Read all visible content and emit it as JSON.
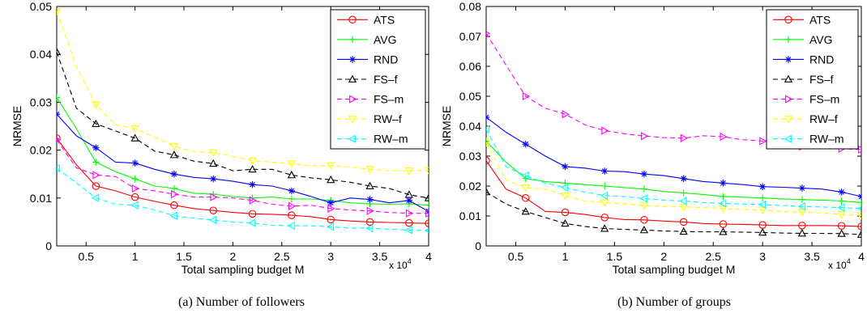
{
  "chart_data": [
    {
      "type": "line",
      "caption": "(a) Number of followers",
      "xlabel": "Total sampling budget M",
      "ylabel": "NRMSE",
      "x_multiplier": "x 10",
      "x_multiplier_exp": "4",
      "xlim": [
        2000,
        40000
      ],
      "ylim": [
        0,
        0.05
      ],
      "xticks": [
        5000,
        10000,
        15000,
        20000,
        25000,
        30000,
        35000,
        40000
      ],
      "xtick_labels": [
        "0.5",
        "1",
        "1.5",
        "2",
        "2.5",
        "3",
        "3.5",
        "4"
      ],
      "yticks": [
        0,
        0.01,
        0.02,
        0.03,
        0.04,
        0.05
      ],
      "ytick_labels": [
        "0",
        "0.01",
        "0.02",
        "0.03",
        "0.04",
        "0.05"
      ],
      "legend_position": "top-right",
      "x": [
        2000,
        4000,
        6000,
        8000,
        10000,
        12000,
        14000,
        16000,
        18000,
        20000,
        22000,
        24000,
        26000,
        28000,
        30000,
        32000,
        34000,
        36000,
        38000,
        40000
      ],
      "series": [
        {
          "name": "ATS",
          "color": "#ff0000",
          "dash": "solid",
          "marker": "circle",
          "values": [
            0.0225,
            0.017,
            0.0125,
            0.0115,
            0.0102,
            0.0093,
            0.0085,
            0.0078,
            0.0074,
            0.007,
            0.0067,
            0.0066,
            0.0064,
            0.0061,
            0.0055,
            0.0052,
            0.005,
            0.0049,
            0.0048,
            0.0047
          ]
        },
        {
          "name": "AVG",
          "color": "#00ff00",
          "dash": "solid",
          "marker": "plus",
          "values": [
            0.031,
            0.0245,
            0.0175,
            0.0155,
            0.014,
            0.0125,
            0.012,
            0.011,
            0.0108,
            0.0103,
            0.01,
            0.0102,
            0.0098,
            0.0098,
            0.0095,
            0.009,
            0.0088,
            0.0087,
            0.0088,
            0.0085
          ]
        },
        {
          "name": "RND",
          "color": "#0000ff",
          "dash": "solid",
          "marker": "star",
          "values": [
            0.0275,
            0.023,
            0.0205,
            0.0175,
            0.0173,
            0.016,
            0.015,
            0.0143,
            0.014,
            0.0135,
            0.0128,
            0.0125,
            0.0115,
            0.0103,
            0.009,
            0.01,
            0.0097,
            0.009,
            0.0095,
            0.0072
          ]
        },
        {
          "name": "FS–f",
          "color": "#000000",
          "dash": "dashed",
          "marker": "triangle-up",
          "values": [
            0.0405,
            0.0288,
            0.0255,
            0.024,
            0.0225,
            0.0198,
            0.019,
            0.0177,
            0.0172,
            0.0157,
            0.016,
            0.016,
            0.0148,
            0.0142,
            0.0138,
            0.0133,
            0.0125,
            0.012,
            0.0107,
            0.01
          ]
        },
        {
          "name": "FS–m",
          "color": "#ff00ff",
          "dash": "dashed",
          "marker": "triangle-right",
          "values": [
            0.0222,
            0.0163,
            0.0148,
            0.0145,
            0.012,
            0.0115,
            0.0108,
            0.0102,
            0.0102,
            0.01,
            0.0095,
            0.0087,
            0.0083,
            0.0085,
            0.0078,
            0.0075,
            0.0073,
            0.007,
            0.0068,
            0.0068
          ]
        },
        {
          "name": "RW–f",
          "color": "#ffff00",
          "dash": "dashed",
          "marker": "triangle-down",
          "values": [
            0.049,
            0.0375,
            0.0295,
            0.0253,
            0.0245,
            0.0227,
            0.0208,
            0.0197,
            0.0195,
            0.0187,
            0.0178,
            0.0175,
            0.0172,
            0.0167,
            0.0168,
            0.0165,
            0.016,
            0.0157,
            0.0157,
            0.0158
          ]
        },
        {
          "name": "RW–m",
          "color": "#00ffff",
          "dash": "dashed",
          "marker": "triangle-left",
          "values": [
            0.0162,
            0.0132,
            0.01,
            0.0087,
            0.0085,
            0.0075,
            0.0063,
            0.0058,
            0.0054,
            0.005,
            0.0048,
            0.0043,
            0.0042,
            0.0042,
            0.004,
            0.0037,
            0.0037,
            0.0035,
            0.0033,
            0.0032
          ]
        }
      ]
    },
    {
      "type": "line",
      "caption": "(b) Number of groups",
      "xlabel": "Total sampling budget M",
      "ylabel": "NRMSE",
      "x_multiplier": "x 10",
      "x_multiplier_exp": "4",
      "xlim": [
        2000,
        40000
      ],
      "ylim": [
        0,
        0.08
      ],
      "xticks": [
        5000,
        10000,
        15000,
        20000,
        25000,
        30000,
        35000,
        40000
      ],
      "xtick_labels": [
        "0.5",
        "1",
        "1.5",
        "2",
        "2.5",
        "3",
        "3.5",
        "4"
      ],
      "yticks": [
        0,
        0.01,
        0.02,
        0.03,
        0.04,
        0.05,
        0.06,
        0.07,
        0.08
      ],
      "ytick_labels": [
        "0",
        "0.01",
        "0.02",
        "0.03",
        "0.04",
        "0.05",
        "0.06",
        "0.07",
        "0.08"
      ],
      "legend_position": "top-right",
      "x": [
        2000,
        4000,
        6000,
        8000,
        10000,
        12000,
        14000,
        16000,
        18000,
        20000,
        22000,
        24000,
        26000,
        28000,
        30000,
        32000,
        34000,
        36000,
        38000,
        40000
      ],
      "series": [
        {
          "name": "ATS",
          "color": "#ff0000",
          "dash": "solid",
          "marker": "circle",
          "values": [
            0.0285,
            0.019,
            0.016,
            0.0115,
            0.0112,
            0.0105,
            0.0095,
            0.0088,
            0.0087,
            0.0083,
            0.008,
            0.0075,
            0.0073,
            0.0072,
            0.007,
            0.0068,
            0.0068,
            0.0068,
            0.0067,
            0.0065
          ]
        },
        {
          "name": "AVG",
          "color": "#00ff00",
          "dash": "solid",
          "marker": "plus",
          "values": [
            0.035,
            0.028,
            0.0225,
            0.0215,
            0.021,
            0.0205,
            0.02,
            0.0195,
            0.019,
            0.0182,
            0.0177,
            0.0172,
            0.0165,
            0.0163,
            0.016,
            0.0157,
            0.0155,
            0.0153,
            0.015,
            0.0145
          ]
        },
        {
          "name": "RND",
          "color": "#0000ff",
          "dash": "solid",
          "marker": "star",
          "values": [
            0.043,
            0.038,
            0.034,
            0.03,
            0.0265,
            0.026,
            0.025,
            0.0248,
            0.024,
            0.0235,
            0.0225,
            0.0215,
            0.021,
            0.0205,
            0.0198,
            0.0196,
            0.0193,
            0.019,
            0.018,
            0.0165
          ]
        },
        {
          "name": "FS–f",
          "color": "#000000",
          "dash": "dashed",
          "marker": "triangle-up",
          "values": [
            0.018,
            0.014,
            0.0115,
            0.0095,
            0.0075,
            0.0065,
            0.0058,
            0.0055,
            0.0053,
            0.005,
            0.0048,
            0.0047,
            0.0047,
            0.0046,
            0.0045,
            0.0043,
            0.0042,
            0.0042,
            0.0041,
            0.0038
          ]
        },
        {
          "name": "FS–m",
          "color": "#ff00ff",
          "dash": "dashed",
          "marker": "triangle-right",
          "values": [
            0.071,
            0.0605,
            0.05,
            0.046,
            0.044,
            0.0405,
            0.0385,
            0.0375,
            0.0367,
            0.0362,
            0.036,
            0.0368,
            0.0365,
            0.0355,
            0.035,
            0.0338,
            0.0332,
            0.0325,
            0.0325,
            0.0322
          ]
        },
        {
          "name": "RW–f",
          "color": "#ffff00",
          "dash": "dashed",
          "marker": "triangle-down",
          "values": [
            0.0345,
            0.022,
            0.0195,
            0.019,
            0.0168,
            0.015,
            0.0145,
            0.014,
            0.0135,
            0.0132,
            0.013,
            0.0128,
            0.0125,
            0.0122,
            0.012,
            0.0115,
            0.0113,
            0.011,
            0.0105,
            0.0102
          ]
        },
        {
          "name": "RW–m",
          "color": "#00ffff",
          "dash": "dashed",
          "marker": "triangle-left",
          "values": [
            0.039,
            0.0265,
            0.0235,
            0.021,
            0.0195,
            0.018,
            0.0168,
            0.0165,
            0.0158,
            0.0153,
            0.015,
            0.0145,
            0.0142,
            0.014,
            0.0138,
            0.0135,
            0.0132,
            0.013,
            0.0128,
            0.0125
          ]
        }
      ]
    }
  ]
}
